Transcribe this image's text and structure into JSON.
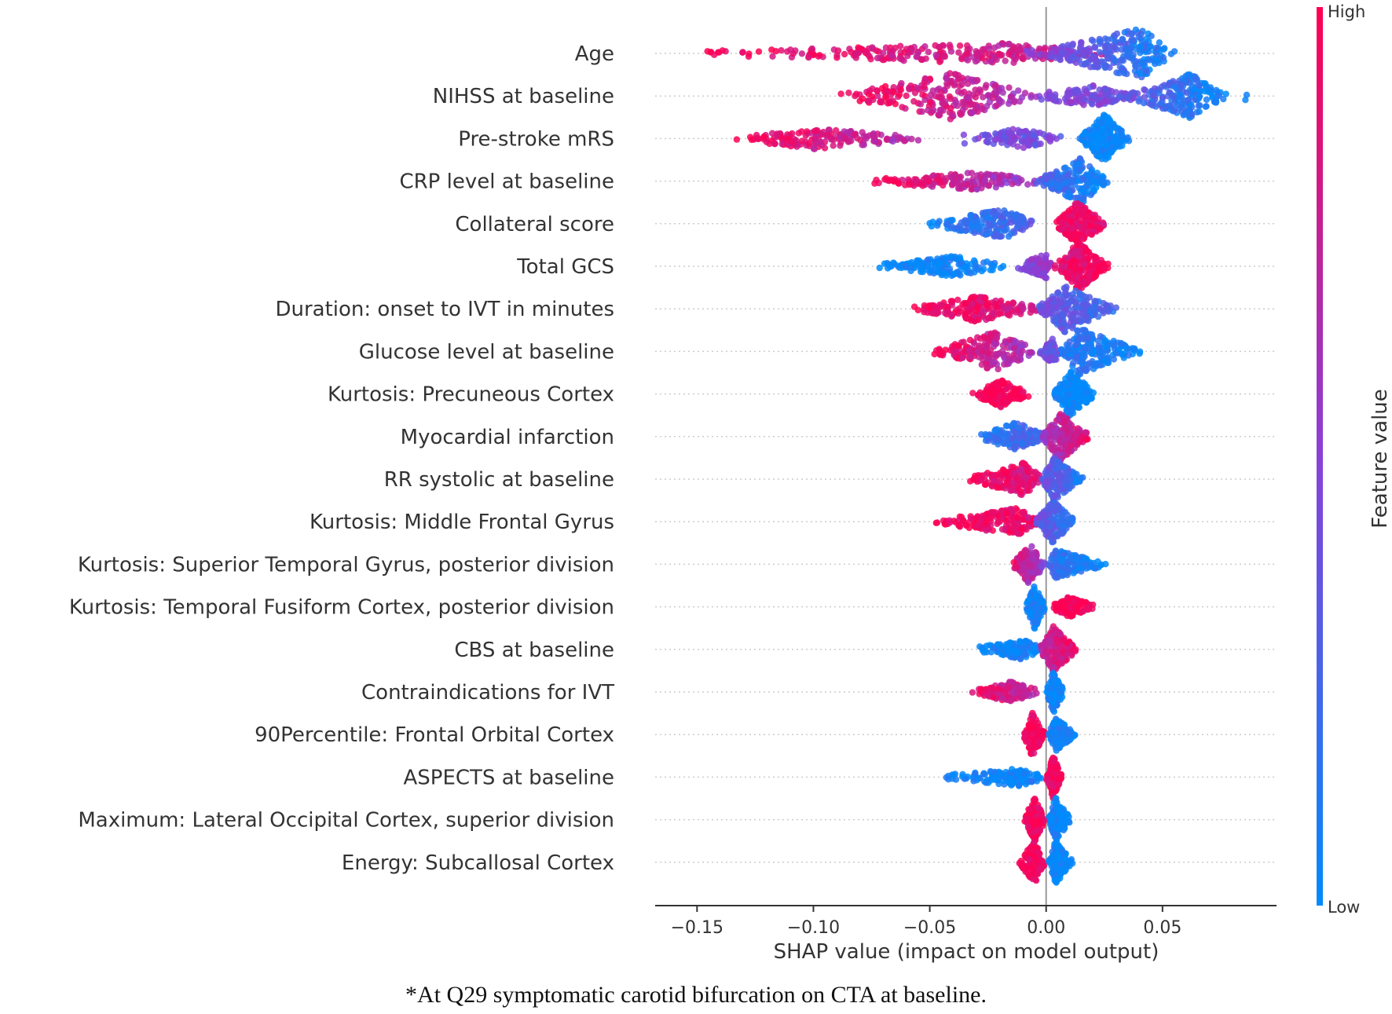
{
  "chart_data": {
    "type": "scatter",
    "subtype": "shap-beeswarm",
    "xlabel": "SHAP value (impact on model output)",
    "xlim": [
      -0.168,
      0.099
    ],
    "xticks": [
      -0.15,
      -0.1,
      -0.05,
      0.0,
      0.05
    ],
    "xtick_labels": [
      "−0.15",
      "−0.10",
      "−0.05",
      "0.00",
      "0.05"
    ],
    "colorbar": {
      "label": "Feature value",
      "high": "High",
      "low": "Low",
      "low_color": "#008bfb",
      "mid_color": "#8a40d8",
      "high_color": "#ff0052"
    },
    "features": [
      {
        "name": "Age",
        "segments": [
          [
            -0.156,
            -0.02,
            0.03,
            0.35,
            1,
            0.7,
            260
          ],
          [
            -0.01,
            0.041,
            0.056,
            1.0,
            0.6,
            0.0,
            260
          ]
        ]
      },
      {
        "name": "NIHSS at baseline",
        "segments": [
          [
            -0.091,
            -0.041,
            0.0,
            0.9,
            1,
            0.6,
            230
          ],
          [
            -0.01,
            0.02,
            0.04,
            0.35,
            0.5,
            0.4,
            120
          ],
          [
            0.03,
            0.062,
            0.079,
            0.85,
            0.4,
            0.0,
            200
          ],
          [
            0.085,
            0.086,
            0.087,
            0.15,
            0,
            0,
            2
          ]
        ]
      },
      {
        "name": "Pre-stroke mRS",
        "segments": [
          [
            -0.136,
            -0.1,
            -0.05,
            0.35,
            1,
            0.6,
            160
          ],
          [
            -0.036,
            -0.035,
            -0.034,
            0.15,
            0.5,
            0.5,
            2
          ],
          [
            -0.032,
            -0.012,
            0.008,
            0.35,
            0.45,
            0.4,
            110
          ],
          [
            0.014,
            0.025,
            0.036,
            1.0,
            0,
            0,
            180
          ]
        ]
      },
      {
        "name": "CRP level at baseline",
        "segments": [
          [
            -0.077,
            -0.03,
            0.0,
            0.3,
            1,
            0.5,
            150
          ],
          [
            -0.005,
            0.015,
            0.027,
            0.9,
            0.3,
            0.0,
            200
          ]
        ]
      },
      {
        "name": "Collateral score",
        "segments": [
          [
            -0.053,
            -0.018,
            -0.004,
            0.55,
            0.05,
            0.3,
            170
          ],
          [
            0.003,
            0.013,
            0.027,
            0.85,
            1,
            0.85,
            190
          ]
        ]
      },
      {
        "name": "Total GCS",
        "segments": [
          [
            -0.074,
            -0.04,
            -0.016,
            0.35,
            0,
            0.05,
            150
          ],
          [
            -0.013,
            0.0,
            0.003,
            0.45,
            0.4,
            0.6,
            90
          ],
          [
            0.003,
            0.014,
            0.027,
            0.95,
            0.85,
            1,
            200
          ]
        ]
      },
      {
        "name": "Duration: onset to IVT in minutes",
        "segments": [
          [
            -0.057,
            -0.03,
            0.0,
            0.45,
            1,
            0.8,
            180
          ],
          [
            -0.005,
            0.008,
            0.031,
            0.9,
            0.4,
            0.2,
            200
          ]
        ]
      },
      {
        "name": "Glucose level at baseline",
        "segments": [
          [
            -0.05,
            -0.022,
            -0.002,
            0.75,
            1,
            0.55,
            180
          ],
          [
            -0.003,
            0.003,
            0.007,
            0.5,
            0.4,
            0.4,
            60
          ],
          [
            0.006,
            0.014,
            0.043,
            0.9,
            0.15,
            0.0,
            200
          ]
        ]
      },
      {
        "name": "Kurtosis: Precuneous Cortex",
        "segments": [
          [
            -0.032,
            -0.019,
            -0.007,
            0.5,
            1,
            1,
            140
          ],
          [
            0.003,
            0.01,
            0.022,
            0.95,
            0,
            0,
            170
          ]
        ]
      },
      {
        "name": "Myocardial infarction",
        "segments": [
          [
            -0.03,
            -0.012,
            0.0,
            0.55,
            0.1,
            0.3,
            140
          ],
          [
            -0.002,
            0.006,
            0.019,
            0.95,
            0.6,
            0.9,
            200
          ]
        ]
      },
      {
        "name": "RR systolic at baseline",
        "segments": [
          [
            -0.034,
            -0.01,
            0.0,
            0.6,
            1,
            0.8,
            170
          ],
          [
            -0.002,
            0.003,
            0.016,
            0.85,
            0.4,
            0.1,
            170
          ]
        ]
      },
      {
        "name": "Kurtosis: Middle Frontal Gyrus",
        "segments": [
          [
            -0.049,
            -0.012,
            -0.003,
            0.5,
            1,
            0.9,
            180
          ],
          [
            -0.005,
            0.003,
            0.013,
            0.85,
            0.4,
            0.1,
            150
          ]
        ]
      },
      {
        "name": "Kurtosis: Superior Temporal Gyrus, posterior division",
        "segments": [
          [
            -0.015,
            -0.007,
            0.0,
            0.8,
            0.9,
            0.5,
            150
          ],
          [
            0.0,
            0.004,
            0.026,
            0.55,
            0.2,
            0.0,
            160
          ]
        ]
      },
      {
        "name": "Kurtosis: Temporal Fusiform Cortex, posterior division",
        "segments": [
          [
            -0.009,
            -0.005,
            0.0,
            0.85,
            0.05,
            0.05,
            120
          ],
          [
            0.002,
            0.01,
            0.021,
            0.35,
            1,
            1,
            110
          ]
        ]
      },
      {
        "name": "CBS at baseline",
        "segments": [
          [
            -0.031,
            -0.01,
            -0.001,
            0.35,
            0,
            0.05,
            120
          ],
          [
            -0.003,
            0.003,
            0.014,
            0.9,
            0.7,
            0.95,
            170
          ]
        ]
      },
      {
        "name": "Contraindications for IVT",
        "segments": [
          [
            -0.032,
            -0.015,
            -0.002,
            0.35,
            0.95,
            0.7,
            140
          ],
          [
            0.0,
            0.003,
            0.008,
            0.85,
            0.1,
            0.0,
            120
          ]
        ]
      },
      {
        "name": "90Percentile: Frontal Orbital Cortex",
        "segments": [
          [
            -0.01,
            -0.006,
            0.0,
            0.85,
            1,
            0.95,
            130
          ],
          [
            0.001,
            0.004,
            0.013,
            0.65,
            0.05,
            0.0,
            120
          ]
        ]
      },
      {
        "name": "ASPECTS at baseline",
        "segments": [
          [
            -0.046,
            -0.01,
            -0.001,
            0.3,
            0,
            0.05,
            130
          ],
          [
            0.0,
            0.003,
            0.007,
            0.85,
            0.95,
            1,
            120
          ]
        ]
      },
      {
        "name": "Maximum: Lateral Occipital Cortex, superior division",
        "segments": [
          [
            -0.01,
            -0.005,
            0.0,
            0.85,
            1,
            0.95,
            120
          ],
          [
            0.001,
            0.004,
            0.011,
            0.85,
            0.05,
            0.0,
            120
          ]
        ]
      },
      {
        "name": "Energy: Subcallosal Cortex",
        "segments": [
          [
            -0.012,
            -0.005,
            0.0,
            0.85,
            1,
            0.95,
            130
          ],
          [
            0.001,
            0.004,
            0.012,
            0.85,
            0.05,
            0.0,
            130
          ]
        ]
      }
    ],
    "segment_fields": [
      "x_min",
      "x_peak",
      "x_max",
      "relative_density",
      "feature_value_left",
      "feature_value_right",
      "n_points"
    ]
  },
  "caption": "*At Q29 symptomatic carotid bifurcation on CTA at baseline."
}
